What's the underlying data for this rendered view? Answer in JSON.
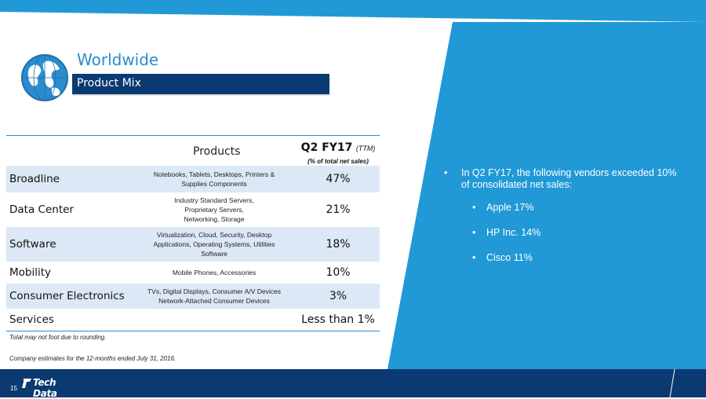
{
  "slide": {
    "title": "Worldwide",
    "subtitle": "Product Mix",
    "page_number": "15",
    "logo_text": "Tech Data"
  },
  "colors": {
    "light_blue": "#2199d6",
    "navy": "#0b3a72",
    "title_blue": "#2a8ccf",
    "row_shade": "#dce8f5"
  },
  "table": {
    "header_products": "Products",
    "header_period": "Q2 FY17",
    "header_ttm": "(TTM)",
    "header_unit": "(% of total net sales)",
    "rows": [
      {
        "category": "Broadline",
        "desc_lines": [
          "Notebooks, Tablets, Desktops, Printers &",
          "Supplies Components"
        ],
        "percent": "47%",
        "shaded": true
      },
      {
        "category": "Data Center",
        "desc_lines": [
          "Industry Standard Servers,",
          "Proprietary Servers,",
          "Networking, Storage"
        ],
        "percent": "21%",
        "shaded": false
      },
      {
        "category": "Software",
        "desc_lines": [
          "Virtualization, Cloud,  Security, Desktop",
          "Applications,  Operating Systems, Utilities",
          "Software"
        ],
        "percent": "18%",
        "shaded": true
      },
      {
        "category": "Mobility",
        "desc_lines": [
          "Mobile Phones, Accessories"
        ],
        "percent": "10%",
        "shaded": false
      },
      {
        "category": "Consumer Electronics",
        "desc_lines": [
          "TVs, Digital Displays, Consumer A/V Devices",
          "Network-Attached Consumer Devices"
        ],
        "percent": "3%",
        "shaded": true
      },
      {
        "category": "Services",
        "desc_lines": [],
        "percent": "Less than 1%",
        "shaded": false
      }
    ],
    "footnote_rounding": "Total may not foot due to rounding.",
    "footnote_estimates": "Company estimates for the 12-months ended  July  31, 2016."
  },
  "bullets": {
    "main": "In Q2 FY17, the following vendors exceeded 10% of consolidated net sales:",
    "vendors": [
      "Apple 17%",
      "HP Inc. 14%",
      "Cisco 11%"
    ]
  },
  "icons": {
    "globe": "globe-icon",
    "logo_mark": "tech-data-logo-mark-icon"
  }
}
